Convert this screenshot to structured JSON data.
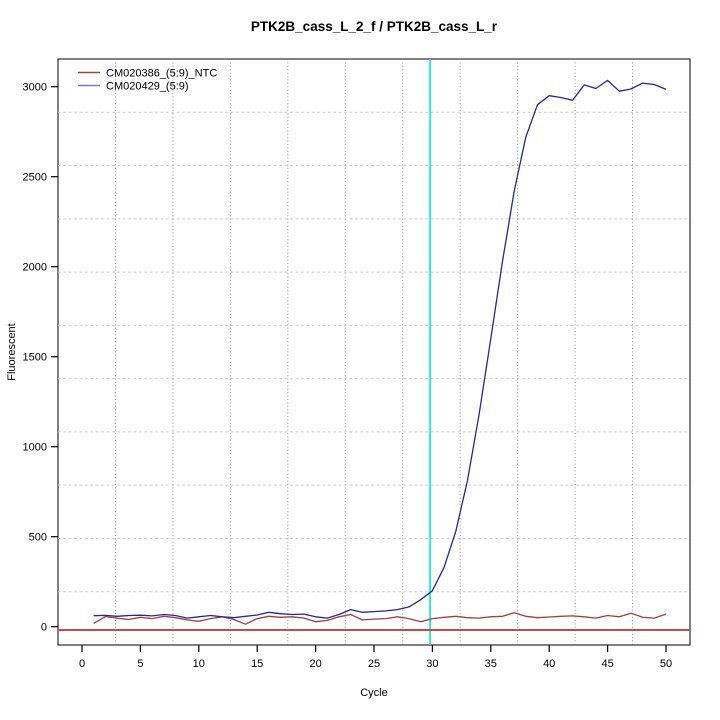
{
  "chart_data": {
    "type": "line",
    "title": "PTK2B_cass_L_2_f / PTK2B_cass_L_r",
    "xlabel": "Cycle",
    "ylabel": "Fluorescent",
    "x_ticks": [
      0,
      5,
      10,
      15,
      20,
      25,
      30,
      35,
      40,
      45,
      50
    ],
    "y_ticks": [
      0,
      500,
      1000,
      1500,
      2000,
      2500,
      3000
    ],
    "xlim": [
      -2.05,
      52.05
    ],
    "ylim": [
      -102,
      3154
    ],
    "grid_divisions": 11,
    "grid_on": true,
    "legend_position": "top-left-inside",
    "threshold_cycle_line": {
      "cycle": 29.8,
      "color": "#00E6E6"
    },
    "baseline_line": {
      "value": -18,
      "color": "#C64A4A"
    },
    "x": [
      1,
      2,
      3,
      4,
      5,
      6,
      7,
      8,
      9,
      10,
      11,
      12,
      13,
      14,
      15,
      16,
      17,
      18,
      19,
      20,
      21,
      22,
      23,
      24,
      25,
      26,
      27,
      28,
      29,
      30,
      31,
      32,
      33,
      34,
      35,
      36,
      37,
      38,
      39,
      40,
      41,
      42,
      43,
      44,
      45,
      46,
      47,
      48,
      49,
      50
    ],
    "series": [
      {
        "name": "CM020386_(5:9)_NTC",
        "color": "#A04040",
        "legend_color": "#A04545",
        "values": [
          19,
          56,
          48,
          40,
          52,
          45,
          58,
          50,
          38,
          30,
          45,
          55,
          40,
          14,
          45,
          58,
          52,
          55,
          48,
          28,
          35,
          55,
          68,
          38,
          42,
          45,
          55,
          45,
          28,
          45,
          52,
          58,
          50,
          48,
          55,
          58,
          78,
          58,
          50,
          54,
          58,
          60,
          55,
          48,
          62,
          55,
          75,
          52,
          48,
          70
        ]
      },
      {
        "name": "CM020429_(5:9)",
        "color": "#26269C",
        "legend_color": "#7878CC",
        "values": [
          61,
          63,
          58,
          62,
          64,
          60,
          68,
          62,
          48,
          55,
          62,
          55,
          50,
          58,
          65,
          80,
          72,
          68,
          70,
          55,
          48,
          68,
          95,
          80,
          84,
          88,
          95,
          110,
          150,
          200,
          330,
          530,
          810,
          1180,
          1600,
          2030,
          2420,
          2720,
          2900,
          2950,
          2940,
          2925,
          3010,
          2990,
          3035,
          2975,
          2987,
          3020,
          3012,
          2985
        ]
      }
    ]
  },
  "colors": {
    "grid_horizontal": "#C8C8C8",
    "grid_vertical": "#8A8A8A",
    "plot_border": "#2B2B2B",
    "axis": "#000000"
  }
}
